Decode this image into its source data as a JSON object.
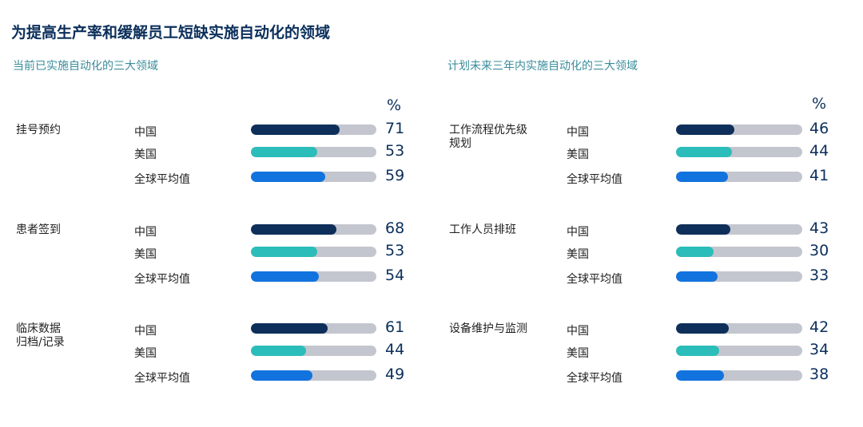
{
  "title": "为提高生产率和缓解员工短缺实施自动化的领域",
  "colors": {
    "中国": "#0e2f5a",
    "美国": "#2bbdb9",
    "全球平均值": "#1273de",
    "track": "#c4c6cf"
  },
  "chart_data": [
    {
      "type": "bar",
      "title": "当前已实施自动化的三大领域",
      "unit": "%",
      "xlim": [
        0,
        100
      ],
      "groups": [
        {
          "label": "挂号预约",
          "rows": [
            {
              "name": "中国",
              "value": 71
            },
            {
              "name": "美国",
              "value": 53
            },
            {
              "name": "全球平均值",
              "value": 59
            }
          ]
        },
        {
          "label": "患者签到",
          "rows": [
            {
              "name": "中国",
              "value": 68
            },
            {
              "name": "美国",
              "value": 53
            },
            {
              "name": "全球平均值",
              "value": 54
            }
          ]
        },
        {
          "label": "临床数据归档/记录",
          "rows": [
            {
              "name": "中国",
              "value": 61
            },
            {
              "name": "美国",
              "value": 44
            },
            {
              "name": "全球平均值",
              "value": 49
            }
          ]
        }
      ]
    },
    {
      "type": "bar",
      "title": "计划未来三年内实施自动化的三大领域",
      "unit": "%",
      "xlim": [
        0,
        100
      ],
      "groups": [
        {
          "label": "工作流程优先级规划",
          "rows": [
            {
              "name": "中国",
              "value": 46
            },
            {
              "name": "美国",
              "value": 44
            },
            {
              "name": "全球平均值",
              "value": 41
            }
          ]
        },
        {
          "label": "工作人员排班",
          "rows": [
            {
              "name": "中国",
              "value": 43
            },
            {
              "name": "美国",
              "value": 30
            },
            {
              "name": "全球平均值",
              "value": 33
            }
          ]
        },
        {
          "label": "设备维护与监测",
          "rows": [
            {
              "name": "中国",
              "value": 42
            },
            {
              "name": "美国",
              "value": 34
            },
            {
              "name": "全球平均值",
              "value": 38
            }
          ]
        }
      ]
    }
  ]
}
